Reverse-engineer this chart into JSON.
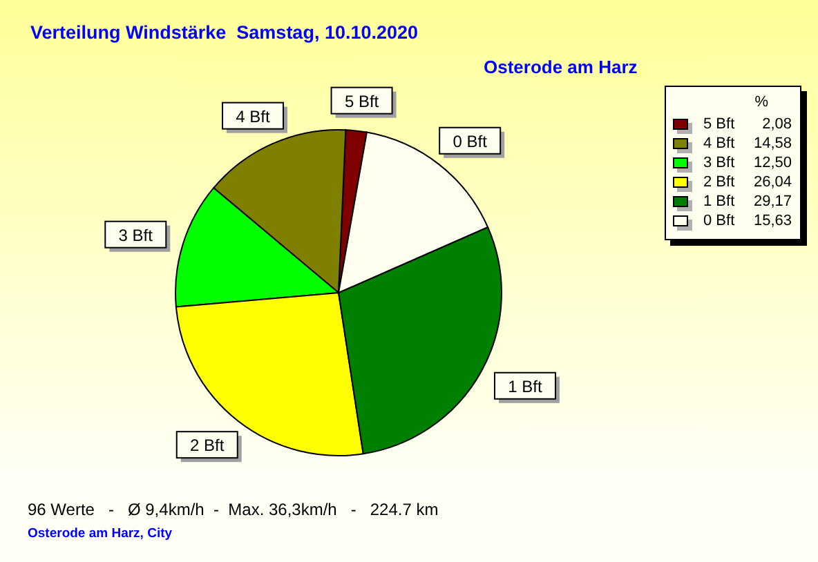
{
  "chart_data": {
    "type": "pie",
    "title": "Verteilung Windstärke  Samstag, 10.10.2020",
    "subtitle": "Osterode am Harz",
    "legend_title": "%",
    "categories": [
      "5 Bft",
      "4 Bft",
      "3 Bft",
      "2 Bft",
      "1 Bft",
      "0 Bft"
    ],
    "values": [
      2.08,
      14.58,
      12.5,
      26.04,
      29.17,
      15.63
    ],
    "value_labels": [
      "2,08",
      "14,58",
      "12,50",
      "26,04",
      "29,17",
      "15,63"
    ],
    "colors": [
      "#800000",
      "#808000",
      "#00ff00",
      "#ffff00",
      "#008000",
      "#fffff0"
    ],
    "legend": "top right",
    "annotations": [
      "96 Werte   -   Ø 9,4km/h  -  Max. 36,3km/h   -   224.7 km",
      "Osterode am Harz, City"
    ]
  }
}
